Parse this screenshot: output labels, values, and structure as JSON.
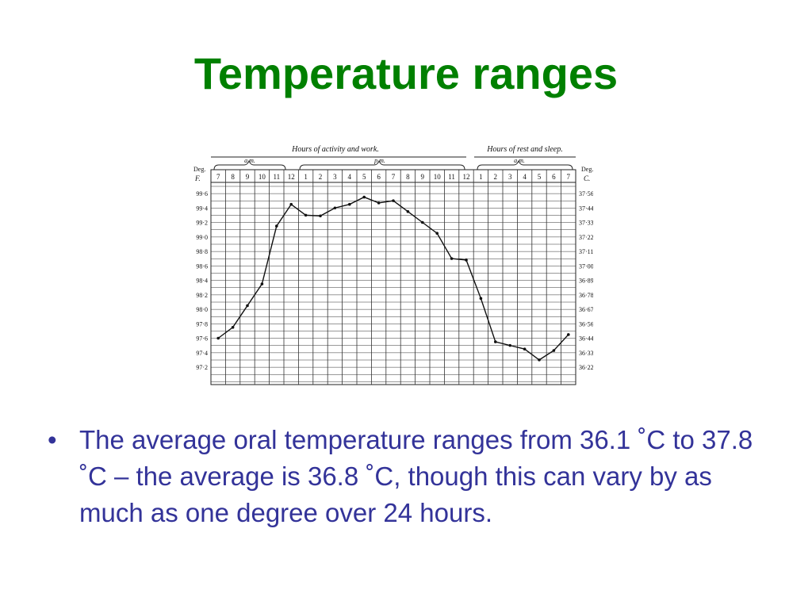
{
  "slide": {
    "title": "Temperature ranges",
    "bullet_marker": "•",
    "bullet_text": "The average oral temperature ranges from 36.1 ˚C to 37.8 ˚C – the average is 36.8 ˚C, though this can vary by as much as one degree over 24 hours."
  },
  "chart_data": {
    "type": "line",
    "header_activity": "Hours of activity and work.",
    "header_rest": "Hours of rest and sleep.",
    "am_label_1": "a.m.",
    "pm_label": "p.m.",
    "am_label_2": "a.m.",
    "left_axis_title": [
      "Deg.",
      "F."
    ],
    "right_axis_title": [
      "Deg.",
      "C."
    ],
    "hour_labels": [
      "7",
      "8",
      "9",
      "10",
      "11",
      "12",
      "1",
      "2",
      "3",
      "4",
      "5",
      "6",
      "7",
      "8",
      "9",
      "10",
      "11",
      "12",
      "1",
      "2",
      "3",
      "4",
      "5",
      "6",
      "7"
    ],
    "left_ticks": [
      "99·6",
      "99·4",
      "99·2",
      "99·0",
      "98·8",
      "98·6",
      "98·4",
      "98·2",
      "98·0",
      "97·8",
      "97·6",
      "97·4",
      "97·2"
    ],
    "right_ticks": [
      "37·56",
      "37·44",
      "37·33",
      "37·22",
      "37·11",
      "37·00",
      "36·89",
      "36·78",
      "36·67",
      "36·56",
      "36·44",
      "36·33",
      "36·22"
    ],
    "ylim_f": [
      97.2,
      99.6
    ],
    "grid": true,
    "x": [
      0,
      1,
      2,
      3,
      4,
      5,
      6,
      7,
      8,
      9,
      10,
      11,
      12,
      13,
      14,
      15,
      16,
      17,
      18,
      19,
      20,
      21,
      22,
      23,
      24
    ],
    "values_f": [
      97.6,
      97.75,
      98.05,
      98.35,
      99.15,
      99.45,
      99.3,
      99.29,
      99.4,
      99.45,
      99.55,
      99.47,
      99.5,
      99.35,
      99.2,
      99.05,
      98.7,
      98.68,
      98.15,
      97.55,
      97.5,
      97.45,
      97.3,
      97.43,
      97.65
    ]
  }
}
